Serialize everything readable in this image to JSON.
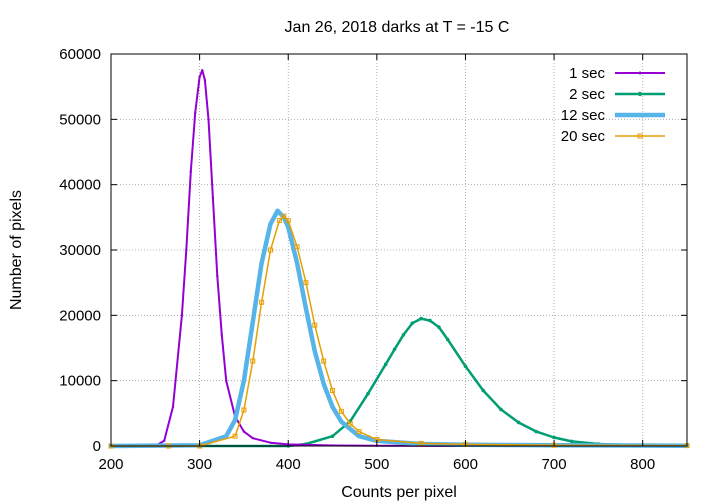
{
  "chart_data": {
    "type": "line",
    "title": "Jan 26, 2018 darks at T = -15 C",
    "xlabel": "Counts per pixel",
    "ylabel": "Number of pixels",
    "xlim": [
      200,
      850
    ],
    "ylim": [
      0,
      60000
    ],
    "xticks": [
      200,
      300,
      400,
      500,
      600,
      700,
      800
    ],
    "yticks": [
      0,
      10000,
      20000,
      30000,
      40000,
      50000,
      60000
    ],
    "grid": true,
    "legend_position": "top-right",
    "series": [
      {
        "name": "1 sec",
        "color": "#9400d3",
        "marker": "point",
        "x": [
          200,
          250,
          260,
          270,
          280,
          285,
          290,
          295,
          300,
          303,
          306,
          310,
          315,
          320,
          325,
          330,
          340,
          350,
          360,
          380,
          400,
          450,
          500,
          600,
          700,
          850
        ],
        "y": [
          0,
          0,
          800,
          6000,
          20000,
          30000,
          42000,
          51000,
          56500,
          57500,
          56000,
          50000,
          38000,
          26000,
          17000,
          10000,
          4500,
          2200,
          1200,
          500,
          250,
          80,
          30,
          0,
          0,
          0
        ]
      },
      {
        "name": "2 sec",
        "color": "#009e73",
        "marker": "dot",
        "x": [
          200,
          300,
          400,
          420,
          450,
          470,
          490,
          510,
          520,
          530,
          540,
          550,
          560,
          570,
          580,
          600,
          620,
          640,
          660,
          680,
          700,
          720,
          750,
          800,
          850
        ],
        "y": [
          0,
          0,
          0,
          300,
          1500,
          3800,
          8000,
          12500,
          14800,
          17000,
          18800,
          19500,
          19200,
          18200,
          16300,
          12200,
          8500,
          5600,
          3600,
          2200,
          1300,
          700,
          300,
          100,
          50
        ]
      },
      {
        "name": "12 sec",
        "color": "#56b4e9",
        "marker": "line",
        "x": [
          200,
          300,
          330,
          340,
          350,
          360,
          370,
          380,
          388,
          395,
          400,
          410,
          420,
          430,
          440,
          450,
          460,
          480,
          500,
          550,
          600,
          700,
          850
        ],
        "y": [
          0,
          100,
          1500,
          4000,
          10000,
          19000,
          28000,
          34000,
          36000,
          35000,
          33500,
          28000,
          21000,
          14500,
          9500,
          6000,
          3700,
          1500,
          800,
          300,
          200,
          100,
          50
        ]
      },
      {
        "name": "20 sec",
        "color": "#e69f00",
        "marker": "square",
        "x": [
          200,
          265,
          300,
          340,
          350,
          360,
          370,
          380,
          390,
          395,
          400,
          410,
          420,
          430,
          440,
          450,
          460,
          470,
          480,
          500,
          550,
          600,
          700,
          850
        ],
        "y": [
          0,
          0,
          0,
          1500,
          5500,
          13000,
          22000,
          30000,
          34500,
          35200,
          34500,
          30500,
          25000,
          18500,
          13000,
          8500,
          5300,
          3400,
          2200,
          1000,
          400,
          250,
          120,
          60
        ]
      }
    ]
  }
}
